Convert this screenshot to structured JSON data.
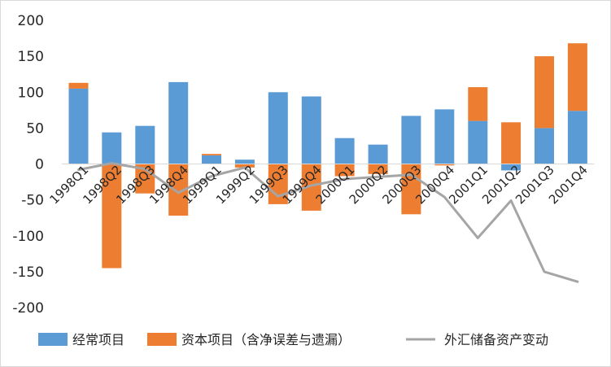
{
  "chart_data": {
    "type": "bar",
    "stacked": true,
    "categories": [
      "1998Q1",
      "1998Q2",
      "1998Q3",
      "1998Q4",
      "1999Q1",
      "1999Q2",
      "1999Q3",
      "1999Q4",
      "2000Q1",
      "2000Q2",
      "2000Q3",
      "2000Q4",
      "2001Q1",
      "2001Q2",
      "2001Q3",
      "2001Q4"
    ],
    "series": [
      {
        "name": "经常项目",
        "type": "bar",
        "color": "#5b9bd5",
        "values": [
          105,
          44,
          53,
          114,
          12,
          6,
          100,
          94,
          36,
          27,
          67,
          76,
          60,
          -9,
          50,
          74
        ]
      },
      {
        "name": "资本项目（含净误差与遗漏）",
        "type": "bar",
        "color": "#ed7d31",
        "values": [
          8,
          -145,
          -41,
          -72,
          2,
          -5,
          -56,
          -65,
          -17,
          -14,
          -70,
          -2,
          47,
          58,
          100,
          94
        ]
      },
      {
        "name": "外汇储备资产变动",
        "type": "line",
        "color": "#a5a5a5",
        "values": [
          -8,
          1,
          -7,
          -40,
          -17,
          -5,
          -45,
          -30,
          -21,
          -18,
          -15,
          -46,
          -103,
          -51,
          -150,
          -164
        ]
      }
    ],
    "ylim": [
      -200,
      200
    ],
    "yticks": [
      "200",
      "150",
      "100",
      "50",
      "0",
      "-50",
      "-100",
      "-150",
      "-200"
    ],
    "grid": false,
    "legend_position": "bottom"
  }
}
